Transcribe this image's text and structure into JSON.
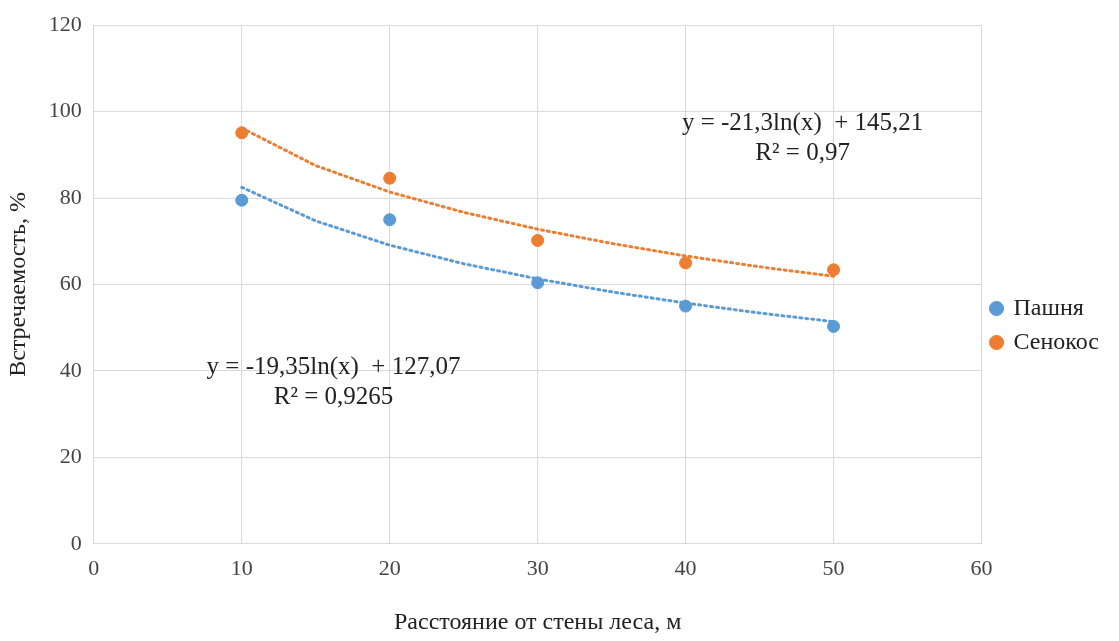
{
  "chart_data": {
    "type": "scatter",
    "xlabel": "Расстояние от стены леса, м",
    "ylabel": "Встречаемость, %",
    "xlim": [
      0,
      60
    ],
    "xticks": [
      0,
      10,
      20,
      30,
      40,
      50,
      60
    ],
    "ylim": [
      0,
      120
    ],
    "yticks": [
      0,
      20,
      40,
      60,
      80,
      100,
      120
    ],
    "grid": true,
    "legend": "right",
    "marker": "circle",
    "series": [
      {
        "name": "Пашня",
        "color": "#5b9bd5",
        "x": [
          10,
          20,
          30,
          40,
          50
        ],
        "values": [
          79.5,
          75,
          60.4,
          55,
          50.3
        ]
      },
      {
        "name": "Сенокос",
        "color": "#ed7d31",
        "x": [
          10,
          20,
          30,
          40,
          50
        ],
        "values": [
          95.1,
          84.6,
          70.2,
          65,
          63.4
        ]
      },
      {
        "type": "line",
        "color": "#5b9bd5",
        "marker": "none",
        "line_style": "dotted",
        "x": [
          10,
          15,
          20,
          25,
          30,
          35,
          40,
          45,
          50
        ],
        "values": [
          82.5,
          74.7,
          69.1,
          64.8,
          61.3,
          58.3,
          55.7,
          53.4,
          51.4
        ]
      },
      {
        "type": "line",
        "color": "#ed7d31",
        "marker": "none",
        "line_style": "dotted",
        "x": [
          10,
          15,
          20,
          25,
          30,
          35,
          40,
          45,
          50
        ],
        "values": [
          96.2,
          87.5,
          81.4,
          76.7,
          72.8,
          69.5,
          66.6,
          64.1,
          61.9
        ]
      }
    ],
    "annotations": [
      "y = -21,3ln(x)  + 145,21\nR² = 0,97",
      "y = -19,35ln(x)  + 127,07\nR² = 0,9265"
    ]
  }
}
